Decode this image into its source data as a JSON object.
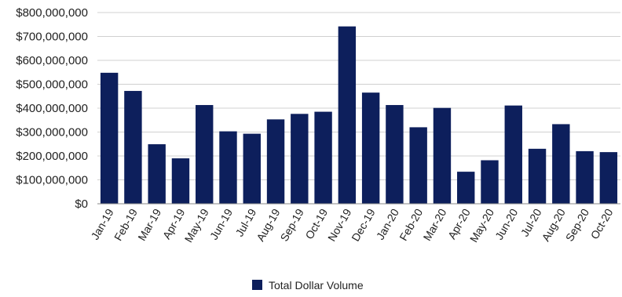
{
  "chart_data": {
    "type": "bar",
    "categories": [
      "Jan-19",
      "Feb-19",
      "Mar-19",
      "Apr-19",
      "May-19",
      "Jun-19",
      "Jul-19",
      "Aug-19",
      "Sep-19",
      "Oct-19",
      "Nov-19",
      "Dec-19",
      "Jan-20",
      "Feb-20",
      "Mar-20",
      "Apr-20",
      "May-20",
      "Jun-20",
      "Jul-20",
      "Aug-20",
      "Sep-20",
      "Oct-20"
    ],
    "series": [
      {
        "name": "Total Dollar Volume",
        "values": [
          548000000,
          472000000,
          249000000,
          190000000,
          413000000,
          303000000,
          293000000,
          353000000,
          376000000,
          385000000,
          742000000,
          465000000,
          413000000,
          320000000,
          401000000,
          134000000,
          182000000,
          411000000,
          230000000,
          333000000,
          220000000,
          216000000
        ],
        "color": "#0d1f5c"
      }
    ],
    "yticks": [
      "$0",
      "$100,000,000",
      "$200,000,000",
      "$300,000,000",
      "$400,000,000",
      "$500,000,000",
      "$600,000,000",
      "$700,000,000",
      "$800,000,000"
    ],
    "ylim": [
      0,
      800000000
    ],
    "grid": true,
    "legend_position": "bottom"
  }
}
